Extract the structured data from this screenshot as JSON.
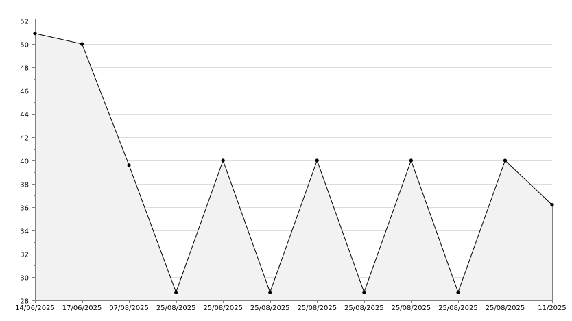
{
  "chart_data": {
    "type": "area",
    "title": "",
    "xlabel": "",
    "ylabel": "",
    "x": [
      "14/06/2025",
      "17/06/2025",
      "07/08/2025",
      "25/08/2025",
      "25/08/2025",
      "25/08/2025",
      "25/08/2025",
      "25/08/2025",
      "25/08/2025",
      "25/08/2025",
      "25/08/2025",
      "11/2025"
    ],
    "series": [
      {
        "values": [
          50.9,
          50.0,
          39.6,
          28.7,
          40.0,
          28.7,
          40.0,
          28.7,
          40.0,
          28.7,
          40.0,
          36.2
        ]
      }
    ],
    "ylim": [
      28,
      52
    ],
    "yticks": [
      28,
      30,
      32,
      34,
      36,
      38,
      40,
      42,
      44,
      46,
      48,
      50,
      52
    ],
    "grid": true,
    "legend": "none",
    "colors": {
      "line": "#000000",
      "fill": "#f2f2f2",
      "grid": "#dcdcdc",
      "axis": "#808080"
    }
  }
}
